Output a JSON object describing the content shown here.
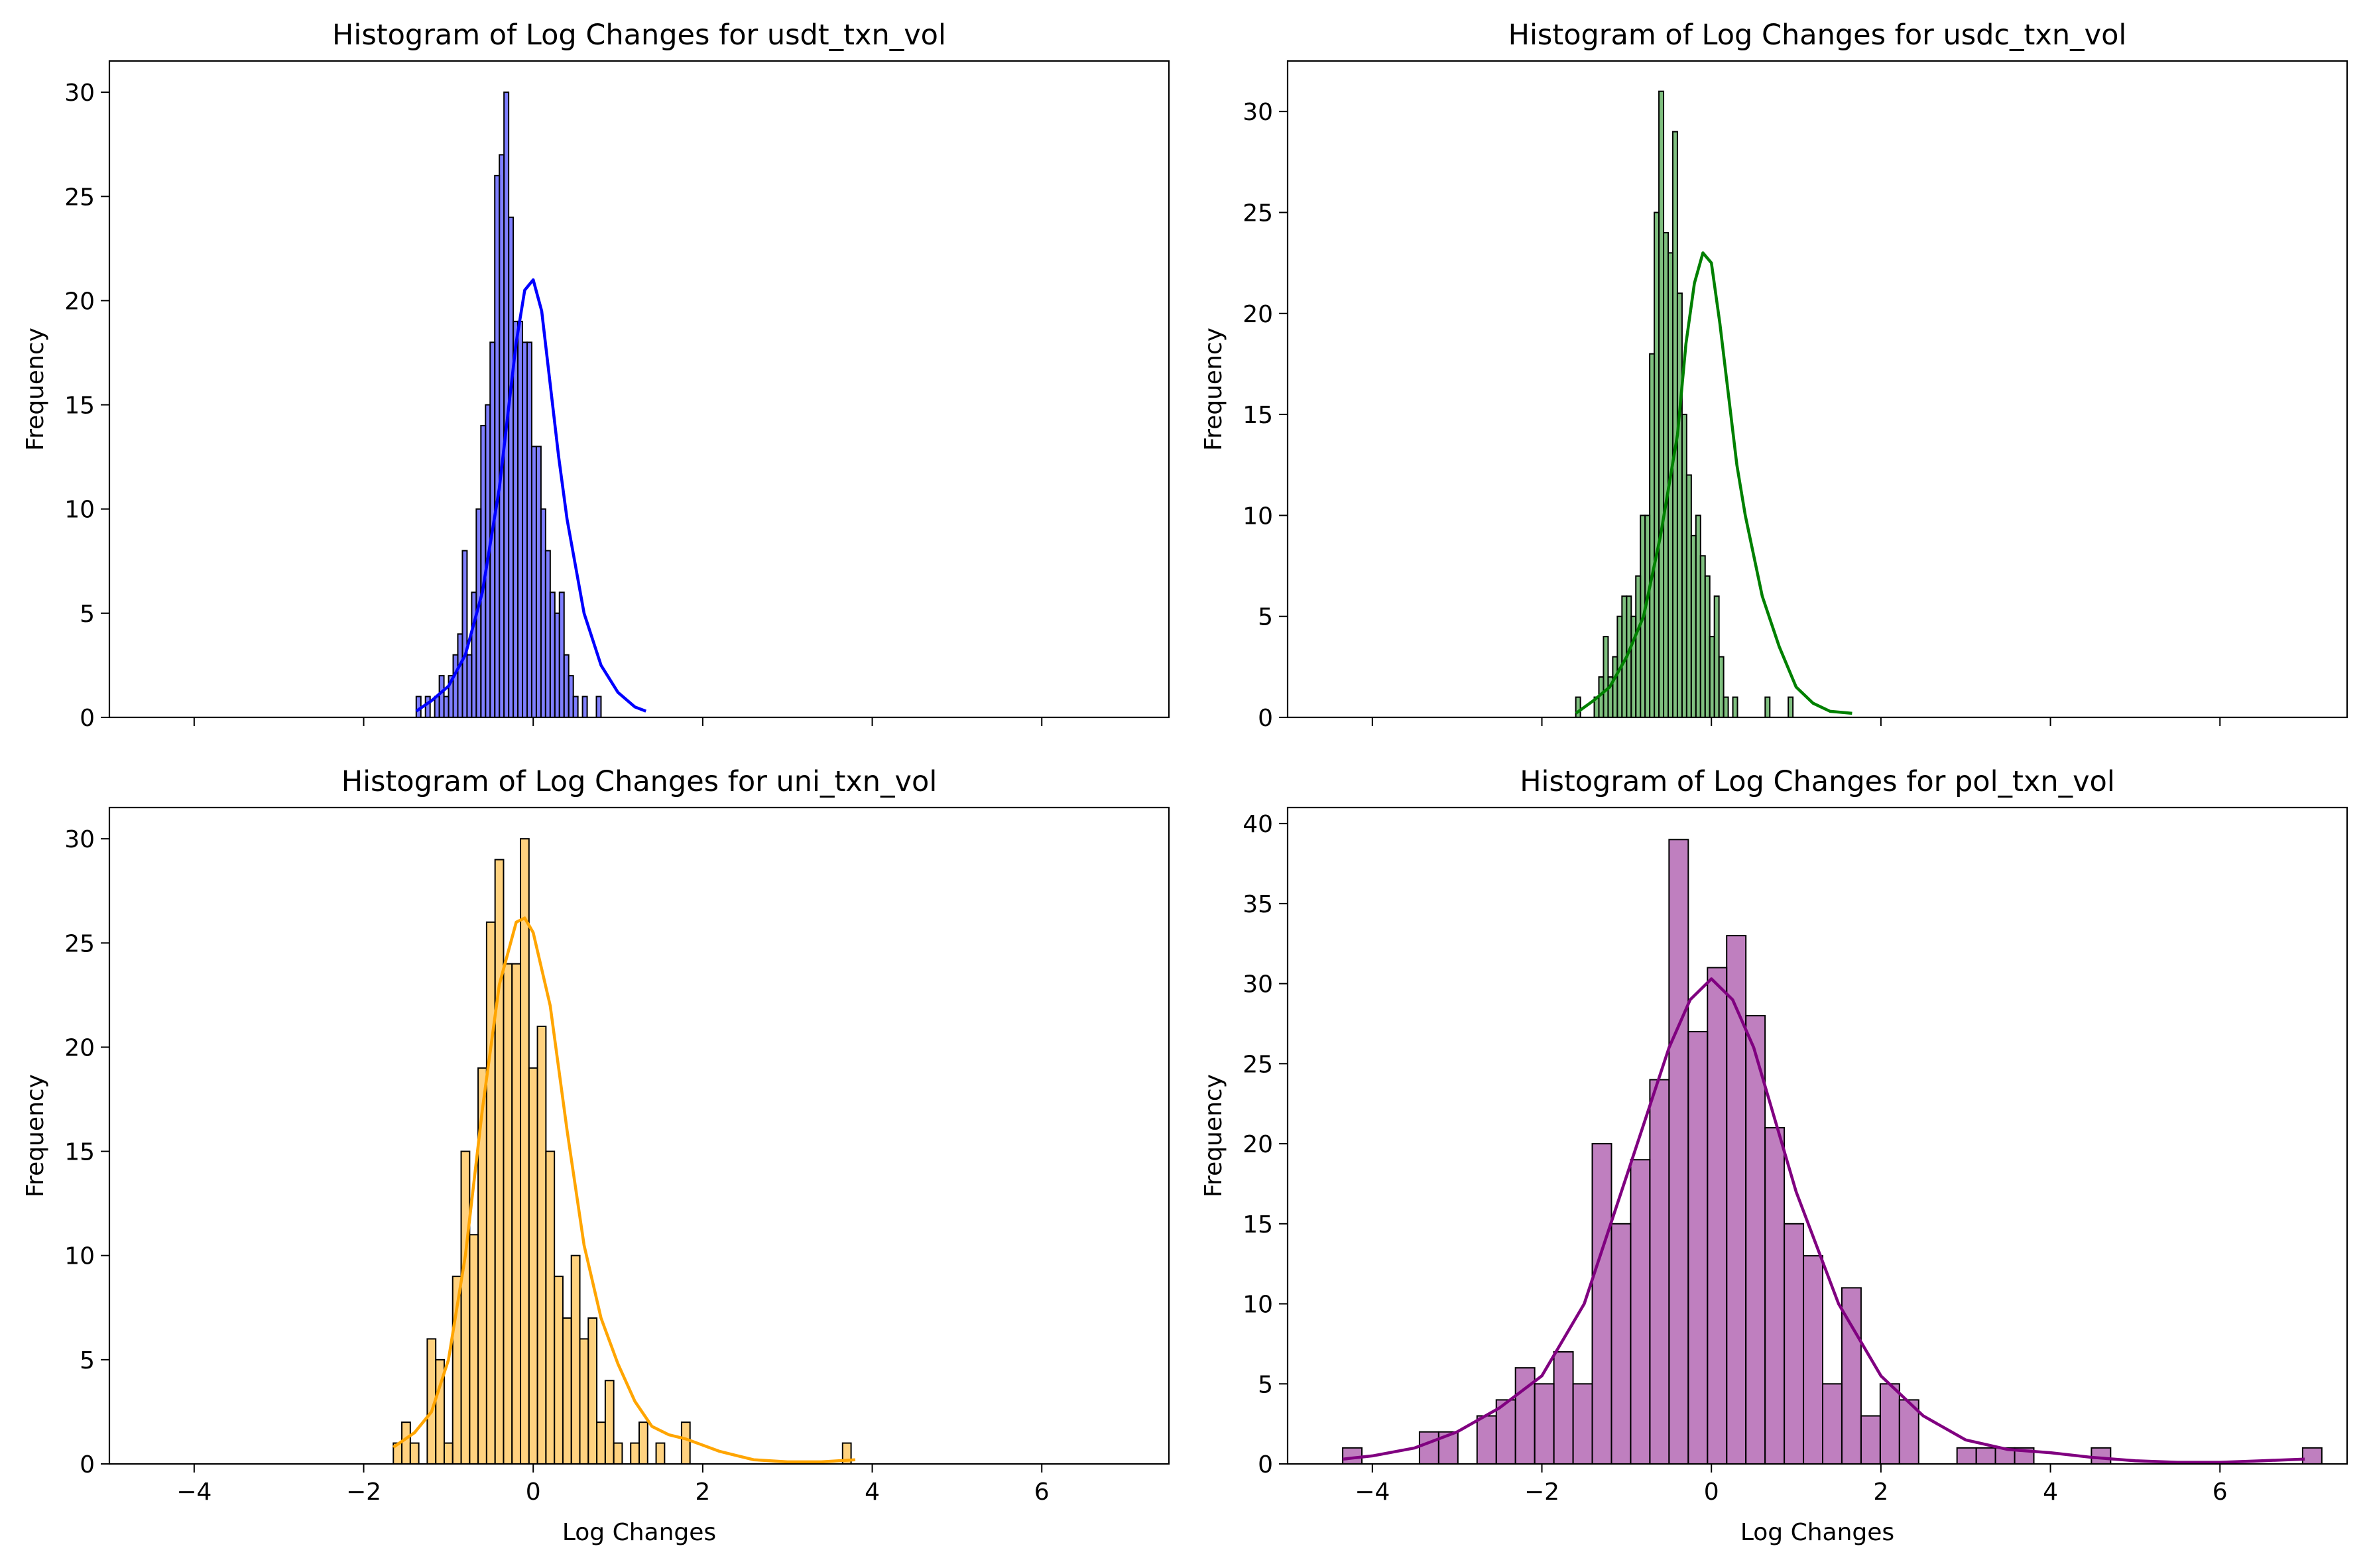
{
  "chart_data": [
    {
      "type": "bar",
      "title": "Histogram of Log Changes for usdt_txn_vol",
      "xlabel": "",
      "ylabel": "Frequency",
      "xlim": [
        -5,
        7.5
      ],
      "ylim": [
        0,
        31.5
      ],
      "xticks": [
        -4,
        -2,
        0,
        2,
        4,
        6
      ],
      "xtick_labels_shown": false,
      "yticks": [
        0,
        5,
        10,
        15,
        20,
        25,
        30
      ],
      "color": "#0000ff",
      "kde_color": "#0000ff",
      "bin_start": -1.38,
      "bin_width": 0.0545,
      "counts": [
        1,
        0,
        1,
        0,
        1,
        2,
        1,
        2,
        3,
        4,
        8,
        3,
        6,
        10,
        14,
        15,
        18,
        26,
        27,
        30,
        24,
        19,
        19,
        18,
        18,
        13,
        13,
        10,
        8,
        6,
        5,
        6,
        3,
        2,
        1,
        0,
        1,
        0,
        0,
        1
      ],
      "kde": {
        "x": [
          -1.38,
          -1.2,
          -1.0,
          -0.8,
          -0.6,
          -0.4,
          -0.3,
          -0.2,
          -0.1,
          0.0,
          0.1,
          0.2,
          0.3,
          0.4,
          0.6,
          0.8,
          1.0,
          1.2,
          1.33
        ],
        "y": [
          0.3,
          0.8,
          1.5,
          3.0,
          6.0,
          11.0,
          14.5,
          18.0,
          20.5,
          21.0,
          19.5,
          16.0,
          12.5,
          9.5,
          5.0,
          2.5,
          1.2,
          0.5,
          0.3
        ]
      }
    },
    {
      "type": "bar",
      "title": "Histogram of Log Changes for usdc_txn_vol",
      "xlabel": "",
      "ylabel": "Frequency",
      "xlim": [
        -5,
        7.5
      ],
      "ylim": [
        0,
        32.5
      ],
      "xticks": [
        -4,
        -2,
        0,
        2,
        4,
        6
      ],
      "xtick_labels_shown": false,
      "yticks": [
        0,
        5,
        10,
        15,
        20,
        25,
        30
      ],
      "color": "#008000",
      "kde_color": "#008000",
      "bin_start": -1.6,
      "bin_width": 0.0545,
      "counts": [
        1,
        0,
        0,
        0,
        1,
        2,
        4,
        2,
        3,
        5,
        6,
        6,
        5,
        7,
        10,
        10,
        18,
        25,
        31,
        24,
        23,
        29,
        21,
        15,
        12,
        9,
        10,
        8,
        7,
        4,
        6,
        3,
        1,
        0,
        1,
        0,
        0,
        0,
        0,
        0,
        0,
        1,
        0,
        0,
        0,
        0,
        1
      ],
      "kde": {
        "x": [
          -1.6,
          -1.4,
          -1.2,
          -1.0,
          -0.8,
          -0.6,
          -0.4,
          -0.3,
          -0.2,
          -0.1,
          0.0,
          0.1,
          0.2,
          0.3,
          0.4,
          0.6,
          0.8,
          1.0,
          1.2,
          1.4,
          1.66
        ],
        "y": [
          0.2,
          0.8,
          1.5,
          3.0,
          5.0,
          9.0,
          14.0,
          18.5,
          21.5,
          23.0,
          22.5,
          19.5,
          16.0,
          12.5,
          10.0,
          6.0,
          3.5,
          1.5,
          0.7,
          0.3,
          0.2
        ]
      }
    },
    {
      "type": "bar",
      "title": "Histogram of Log Changes for uni_txn_vol",
      "xlabel": "Log Changes",
      "ylabel": "Frequency",
      "xlim": [
        -5,
        7.5
      ],
      "ylim": [
        0,
        31.5
      ],
      "xticks": [
        -4,
        -2,
        0,
        2,
        4,
        6
      ],
      "xtick_labels_shown": true,
      "yticks": [
        0,
        5,
        10,
        15,
        20,
        25,
        30
      ],
      "color": "#ffa500",
      "kde_color": "#ffa500",
      "bin_start": -1.65,
      "bin_width": 0.1,
      "counts": [
        1,
        2,
        1,
        0,
        6,
        5,
        1,
        9,
        15,
        11,
        19,
        26,
        29,
        24,
        24,
        30,
        19,
        21,
        15,
        9,
        7,
        10,
        6,
        7,
        2,
        4,
        1,
        0,
        1,
        2,
        0,
        1,
        0,
        0,
        2,
        0,
        0,
        0,
        0,
        0,
        0,
        0,
        0,
        0,
        0,
        0,
        0,
        0,
        0,
        0,
        0,
        0,
        0,
        1
      ],
      "kde": {
        "x": [
          -1.65,
          -1.4,
          -1.2,
          -1.0,
          -0.8,
          -0.6,
          -0.4,
          -0.2,
          -0.1,
          0.0,
          0.2,
          0.4,
          0.6,
          0.8,
          1.0,
          1.2,
          1.4,
          1.6,
          1.8,
          2.0,
          2.2,
          2.4,
          2.6,
          3.0,
          3.4,
          3.8
        ],
        "y": [
          0.8,
          1.5,
          2.5,
          5.0,
          10.0,
          17.0,
          23.0,
          26.0,
          26.2,
          25.5,
          22.0,
          16.0,
          10.5,
          7.0,
          4.8,
          3.0,
          1.8,
          1.4,
          1.2,
          0.9,
          0.6,
          0.4,
          0.2,
          0.1,
          0.1,
          0.2
        ]
      }
    },
    {
      "type": "bar",
      "title": "Histogram of Log Changes for pol_txn_vol",
      "xlabel": "Log Changes",
      "ylabel": "Frequency",
      "xlim": [
        -5,
        7.5
      ],
      "ylim": [
        0,
        41
      ],
      "xticks": [
        -4,
        -2,
        0,
        2,
        4,
        6
      ],
      "xtick_labels_shown": true,
      "yticks": [
        0,
        5,
        10,
        15,
        20,
        25,
        30,
        35,
        40
      ],
      "color": "#800080",
      "kde_color": "#800080",
      "bin_start": -4.35,
      "bin_width": 0.2265,
      "counts": [
        1,
        0,
        0,
        0,
        2,
        2,
        0,
        3,
        4,
        6,
        5,
        7,
        5,
        20,
        15,
        19,
        24,
        39,
        27,
        31,
        33,
        28,
        21,
        15,
        13,
        5,
        11,
        3,
        5,
        4,
        0,
        0,
        1,
        1,
        1,
        1,
        0,
        0,
        0,
        1,
        0,
        0,
        0,
        0,
        0,
        0,
        0,
        0,
        0,
        0,
        1
      ],
      "kde": {
        "x": [
          -4.35,
          -4.0,
          -3.5,
          -3.0,
          -2.5,
          -2.0,
          -1.5,
          -1.0,
          -0.5,
          -0.25,
          0.0,
          0.25,
          0.5,
          1.0,
          1.5,
          2.0,
          2.5,
          3.0,
          3.5,
          4.0,
          4.5,
          5.0,
          5.5,
          6.0,
          6.5,
          7.0
        ],
        "y": [
          0.3,
          0.5,
          1.0,
          2.0,
          3.5,
          5.5,
          10.0,
          18.0,
          26.0,
          29.0,
          30.3,
          29.0,
          26.0,
          17.0,
          10.0,
          5.5,
          3.0,
          1.5,
          0.9,
          0.7,
          0.4,
          0.2,
          0.1,
          0.1,
          0.2,
          0.3
        ]
      }
    }
  ]
}
